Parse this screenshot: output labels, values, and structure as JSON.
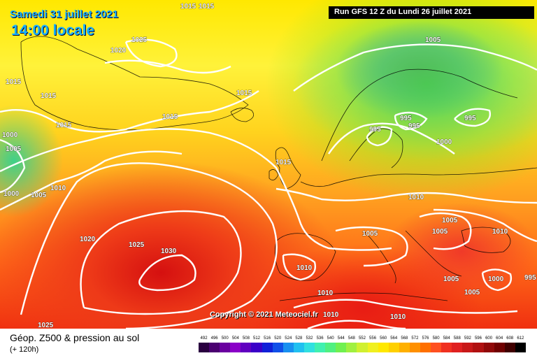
{
  "header": {
    "date_label": "Samedi 31 juillet 2021",
    "time_label": "14:00 locale",
    "run_label": "Run GFS 12 Z du Lundi 26 juillet 2021"
  },
  "map": {
    "copyright": "Copyright © 2021 Meteociel.fr",
    "pressure_labels": [
      {
        "text": "1015",
        "lon_hint": "greenland-top"
      },
      {
        "text": "1015",
        "lon_hint": "greenland-top-2"
      },
      {
        "text": "1025",
        "lon_hint": "greenland"
      },
      {
        "text": "1020",
        "lon_hint": "greenland-west"
      },
      {
        "text": "1015",
        "lon_hint": "labrador"
      },
      {
        "text": "1015",
        "lon_hint": "greenland-south"
      },
      {
        "text": "1015",
        "lon_hint": "greenland-south-2"
      },
      {
        "text": "1015",
        "lon_hint": "iceland"
      },
      {
        "text": "1015",
        "lon_hint": "north-atlantic"
      },
      {
        "text": "1005",
        "lon_hint": "scandinavia-north"
      },
      {
        "text": "995",
        "lon_hint": "scandinavia-1"
      },
      {
        "text": "995",
        "lon_hint": "scandinavia-2"
      },
      {
        "text": "995",
        "lon_hint": "scandinavia-3"
      },
      {
        "text": "995",
        "lon_hint": "russia"
      },
      {
        "text": "1000",
        "lon_hint": "baltic"
      },
      {
        "text": "1000",
        "lon_hint": "canada-1"
      },
      {
        "text": "1005",
        "lon_hint": "canada-2"
      },
      {
        "text": "1000",
        "lon_hint": "canada-3"
      },
      {
        "text": "1005",
        "lon_hint": "canada-4"
      },
      {
        "text": "1010",
        "lon_hint": "mid-atlantic"
      },
      {
        "text": "1015",
        "lon_hint": "ireland"
      },
      {
        "text": "1010",
        "lon_hint": "germany"
      },
      {
        "text": "1020",
        "lon_hint": "atlantic-west"
      },
      {
        "text": "1025",
        "lon_hint": "azores-1"
      },
      {
        "text": "1030",
        "lon_hint": "azores-center"
      },
      {
        "text": "1005",
        "lon_hint": "alps"
      },
      {
        "text": "1005",
        "lon_hint": "balkans-1"
      },
      {
        "text": "1005",
        "lon_hint": "balkans-2"
      },
      {
        "text": "1010",
        "lon_hint": "ukraine"
      },
      {
        "text": "1010",
        "lon_hint": "iberia"
      },
      {
        "text": "1005",
        "lon_hint": "greece"
      },
      {
        "text": "1005",
        "lon_hint": "turkey-1"
      },
      {
        "text": "1000",
        "lon_hint": "turkey-2"
      },
      {
        "text": "995",
        "lon_hint": "east-edge"
      },
      {
        "text": "1010",
        "lon_hint": "north-africa-1"
      },
      {
        "text": "1010",
        "lon_hint": "north-africa-2"
      },
      {
        "text": "1010",
        "lon_hint": "north-africa-3"
      },
      {
        "text": "1025",
        "lon_hint": "sw-atlantic"
      }
    ]
  },
  "footer": {
    "title": "Géop. Z500 & pression au sol",
    "subtitle": "(+ 120h)"
  },
  "legend": {
    "ticks": [
      "492",
      "496",
      "500",
      "504",
      "508",
      "512",
      "516",
      "520",
      "524",
      "528",
      "532",
      "536",
      "540",
      "544",
      "548",
      "552",
      "556",
      "560",
      "564",
      "568",
      "572",
      "576",
      "580",
      "584",
      "588",
      "592",
      "596",
      "600",
      "604",
      "608",
      "612"
    ],
    "colors": [
      "#2a0040",
      "#4a0070",
      "#6a00a0",
      "#8a00c8",
      "#6000c0",
      "#3a00c8",
      "#1020d8",
      "#1050e8",
      "#1890f0",
      "#20c0f0",
      "#30e0e0",
      "#40f0b0",
      "#50f080",
      "#70f050",
      "#a0f040",
      "#d0f030",
      "#f0f020",
      "#ffe800",
      "#ffd000",
      "#ffb000",
      "#ff9000",
      "#ff7000",
      "#ff5020",
      "#f03020",
      "#e02020",
      "#c81818",
      "#b01010",
      "#900808",
      "#700000",
      "#400000",
      "#000000"
    ]
  }
}
